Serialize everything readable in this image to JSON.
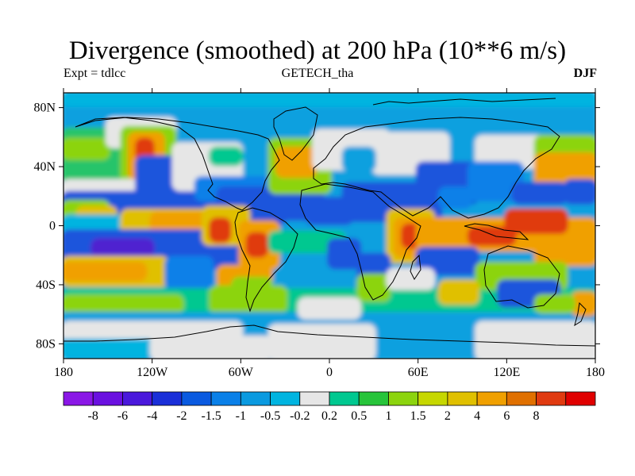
{
  "title": "Divergence (smoothed) at 200 hPa (10**6 m/s)",
  "subtitle_left": "Expt = tdlcc",
  "subtitle_center": "GETECH_tha",
  "subtitle_right": "DJF",
  "map": {
    "lon_range": [
      -180,
      180
    ],
    "lat_range": [
      -90,
      90
    ],
    "lon_ticks": [
      {
        "value": -180,
        "label": "180"
      },
      {
        "value": -120,
        "label": "120W"
      },
      {
        "value": -60,
        "label": "60W"
      },
      {
        "value": 0,
        "label": "0"
      },
      {
        "value": 60,
        "label": "60E"
      },
      {
        "value": 120,
        "label": "120E"
      },
      {
        "value": 180,
        "label": "180"
      }
    ],
    "lat_ticks": [
      {
        "value": 80,
        "label": "80N"
      },
      {
        "value": 40,
        "label": "40N"
      },
      {
        "value": 0,
        "label": "0"
      },
      {
        "value": -40,
        "label": "40S"
      },
      {
        "value": -80,
        "label": "80S"
      }
    ],
    "field_cells": [
      {
        "lon": -180,
        "lat": 90,
        "w": 360,
        "h": 180,
        "c": "#0ea0df"
      },
      {
        "lon": -180,
        "lat": 88,
        "w": 360,
        "h": 6,
        "c": "#00b4e0"
      },
      {
        "lon": -180,
        "lat": 65,
        "w": 55,
        "h": 35,
        "c": "#27c46b"
      },
      {
        "lon": -180,
        "lat": 58,
        "w": 30,
        "h": 12,
        "c": "#8cd40e"
      },
      {
        "lon": -150,
        "lat": 72,
        "w": 45,
        "h": 18,
        "c": "#e6e6e6"
      },
      {
        "lon": -140,
        "lat": 66,
        "w": 35,
        "h": 45,
        "c": "#8cd40e"
      },
      {
        "lon": -135,
        "lat": 62,
        "w": 22,
        "h": 30,
        "c": "#f0a000"
      },
      {
        "lon": -130,
        "lat": 58,
        "w": 10,
        "h": 14,
        "c": "#e03a10"
      },
      {
        "lon": -180,
        "lat": 30,
        "w": 70,
        "h": 14,
        "c": "#e6e6e6"
      },
      {
        "lon": -180,
        "lat": 22,
        "w": 150,
        "h": 20,
        "c": "#1a55dc"
      },
      {
        "lon": -180,
        "lat": 16,
        "w": 30,
        "h": 12,
        "c": "#8cd40e"
      },
      {
        "lon": -170,
        "lat": 12,
        "w": 25,
        "h": 8,
        "c": "#e0c000"
      },
      {
        "lon": -130,
        "lat": 46,
        "w": 25,
        "h": 30,
        "c": "#1a55dc"
      },
      {
        "lon": -105,
        "lat": 55,
        "w": 45,
        "h": 30,
        "c": "#e6e6e6"
      },
      {
        "lon": -80,
        "lat": 52,
        "w": 20,
        "h": 10,
        "c": "#00c890"
      },
      {
        "lon": -90,
        "lat": 32,
        "w": 55,
        "h": 14,
        "c": "#0a80e8"
      },
      {
        "lon": -75,
        "lat": 25,
        "w": 70,
        "h": 20,
        "c": "#1a55dc"
      },
      {
        "lon": -40,
        "lat": 58,
        "w": 40,
        "h": 35,
        "c": "#8cd40e"
      },
      {
        "lon": -35,
        "lat": 52,
        "w": 25,
        "h": 18,
        "c": "#f0a000"
      },
      {
        "lon": -10,
        "lat": 64,
        "w": 50,
        "h": 25,
        "c": "#e6e6e6"
      },
      {
        "lon": -180,
        "lat": 6,
        "w": 80,
        "h": 14,
        "c": "#00b4e0"
      },
      {
        "lon": -140,
        "lat": 10,
        "w": 70,
        "h": 16,
        "c": "#e0c000"
      },
      {
        "lon": -120,
        "lat": 8,
        "w": 50,
        "h": 12,
        "c": "#f0a000"
      },
      {
        "lon": -180,
        "lat": -4,
        "w": 120,
        "h": 24,
        "c": "#1a55dc"
      },
      {
        "lon": -160,
        "lat": -10,
        "w": 40,
        "h": 10,
        "c": "#5020d0"
      },
      {
        "lon": -180,
        "lat": -22,
        "w": 70,
        "h": 18,
        "c": "#e0c000"
      },
      {
        "lon": -180,
        "lat": -26,
        "w": 55,
        "h": 10,
        "c": "#f0a000"
      },
      {
        "lon": -110,
        "lat": -22,
        "w": 30,
        "h": 20,
        "c": "#0a80e8"
      },
      {
        "lon": -85,
        "lat": 12,
        "w": 30,
        "h": 24,
        "c": "#e0c000"
      },
      {
        "lon": -80,
        "lat": 4,
        "w": 12,
        "h": 14,
        "c": "#e03a10"
      },
      {
        "lon": -60,
        "lat": 2,
        "w": 25,
        "h": 30,
        "c": "#f0a000"
      },
      {
        "lon": -55,
        "lat": -6,
        "w": 12,
        "h": 14,
        "c": "#e03a10"
      },
      {
        "lon": -75,
        "lat": -28,
        "w": 35,
        "h": 14,
        "c": "#f0a000"
      },
      {
        "lon": -65,
        "lat": -36,
        "w": 25,
        "h": 12,
        "c": "#8cd40e"
      },
      {
        "lon": -40,
        "lat": -5,
        "w": 50,
        "h": 12,
        "c": "#00c890"
      },
      {
        "lon": -180,
        "lat": -44,
        "w": 360,
        "h": 14,
        "c": "#00c890"
      },
      {
        "lon": -180,
        "lat": -48,
        "w": 80,
        "h": 10,
        "c": "#8cd40e"
      },
      {
        "lon": -80,
        "lat": -42,
        "w": 50,
        "h": 16,
        "c": "#8cd40e"
      },
      {
        "lon": -180,
        "lat": -60,
        "w": 360,
        "h": 16,
        "c": "#0ea0df"
      },
      {
        "lon": -180,
        "lat": -66,
        "w": 120,
        "h": 10,
        "c": "#e6e6e6"
      },
      {
        "lon": -40,
        "lat": -68,
        "w": 70,
        "h": 22,
        "c": "#e6e6e6"
      },
      {
        "lon": 100,
        "lat": -66,
        "w": 80,
        "h": 24,
        "c": "#e6e6e6"
      },
      {
        "lon": -180,
        "lat": -78,
        "w": 60,
        "h": 10,
        "c": "#00b4e0"
      },
      {
        "lon": -120,
        "lat": -76,
        "w": 80,
        "h": 14,
        "c": "#e6e6e6"
      },
      {
        "lon": 10,
        "lat": 28,
        "w": 65,
        "h": 24,
        "c": "#1a55dc"
      },
      {
        "lon": -15,
        "lat": 18,
        "w": 30,
        "h": 16,
        "c": "#1a55dc"
      },
      {
        "lon": 30,
        "lat": 62,
        "w": 50,
        "h": 26,
        "c": "#e6e6e6"
      },
      {
        "lon": 10,
        "lat": 52,
        "w": 20,
        "h": 14,
        "c": "#0ea0df"
      },
      {
        "lon": 60,
        "lat": 42,
        "w": 40,
        "h": 26,
        "c": "#1a55dc"
      },
      {
        "lon": 75,
        "lat": 25,
        "w": 20,
        "h": 12,
        "c": "#0a80e8"
      },
      {
        "lon": 100,
        "lat": 60,
        "w": 50,
        "h": 20,
        "c": "#e6e6e6"
      },
      {
        "lon": 95,
        "lat": 42,
        "w": 35,
        "h": 24,
        "c": "#0a80e8"
      },
      {
        "lon": 140,
        "lat": 60,
        "w": 40,
        "h": 20,
        "c": "#8cd40e"
      },
      {
        "lon": 140,
        "lat": 48,
        "w": 40,
        "h": 26,
        "c": "#f0a000"
      },
      {
        "lon": 160,
        "lat": 30,
        "w": 20,
        "h": 14,
        "c": "#1a55dc"
      },
      {
        "lon": 125,
        "lat": 28,
        "w": 35,
        "h": 12,
        "c": "#1a55dc"
      },
      {
        "lon": 40,
        "lat": 10,
        "w": 30,
        "h": 34,
        "c": "#e0c000"
      },
      {
        "lon": 45,
        "lat": 4,
        "w": 20,
        "h": 24,
        "c": "#f0a000"
      },
      {
        "lon": 50,
        "lat": 0,
        "w": 10,
        "h": 14,
        "c": "#e03a10"
      },
      {
        "lon": 60,
        "lat": 4,
        "w": 120,
        "h": 20,
        "c": "#f0a000"
      },
      {
        "lon": 95,
        "lat": -2,
        "w": 30,
        "h": 10,
        "c": "#e03a10"
      },
      {
        "lon": 120,
        "lat": 10,
        "w": 40,
        "h": 14,
        "c": "#e03a10"
      },
      {
        "lon": 60,
        "lat": -16,
        "w": 40,
        "h": 16,
        "c": "#1a55dc"
      },
      {
        "lon": 140,
        "lat": -10,
        "w": 40,
        "h": 16,
        "c": "#f0a000"
      },
      {
        "lon": 100,
        "lat": -26,
        "w": 60,
        "h": 16,
        "c": "#8cd40e"
      },
      {
        "lon": 115,
        "lat": -38,
        "w": 40,
        "h": 16,
        "c": "#1a55dc"
      },
      {
        "lon": 0,
        "lat": -10,
        "w": 20,
        "h": 18,
        "c": "#1a55dc"
      },
      {
        "lon": 20,
        "lat": -20,
        "w": 20,
        "h": 20,
        "c": "#1a55dc"
      },
      {
        "lon": 20,
        "lat": -34,
        "w": 20,
        "h": 16,
        "c": "#8cd40e"
      },
      {
        "lon": -20,
        "lat": -50,
        "w": 40,
        "h": 12,
        "c": "#e6e6e6"
      },
      {
        "lon": 40,
        "lat": -30,
        "w": 30,
        "h": 12,
        "c": "#e6e6e6"
      },
      {
        "lon": 75,
        "lat": -38,
        "w": 25,
        "h": 14,
        "c": "#e0c000"
      },
      {
        "lon": 165,
        "lat": -46,
        "w": 15,
        "h": 14,
        "c": "#f0a000"
      },
      {
        "lon": 140,
        "lat": -48,
        "w": 25,
        "h": 10,
        "c": "#8cd40e"
      }
    ]
  },
  "colorbar": {
    "colors": [
      "#8a17e6",
      "#6a10e0",
      "#4a18dc",
      "#1a2fd8",
      "#0a5ae0",
      "#0a80e8",
      "#0a9ae0",
      "#00b4e0",
      "#e6e6e6",
      "#00c890",
      "#27c43a",
      "#8cd40e",
      "#c6d700",
      "#e0c000",
      "#f0a000",
      "#e07000",
      "#e03a10",
      "#e00000"
    ],
    "labels": [
      "-8",
      "-6",
      "-4",
      "-2",
      "-1.5",
      "-1",
      "-0.5",
      "-0.2",
      "0.2",
      "0.5",
      "1",
      "1.5",
      "2",
      "4",
      "6",
      "8"
    ]
  }
}
